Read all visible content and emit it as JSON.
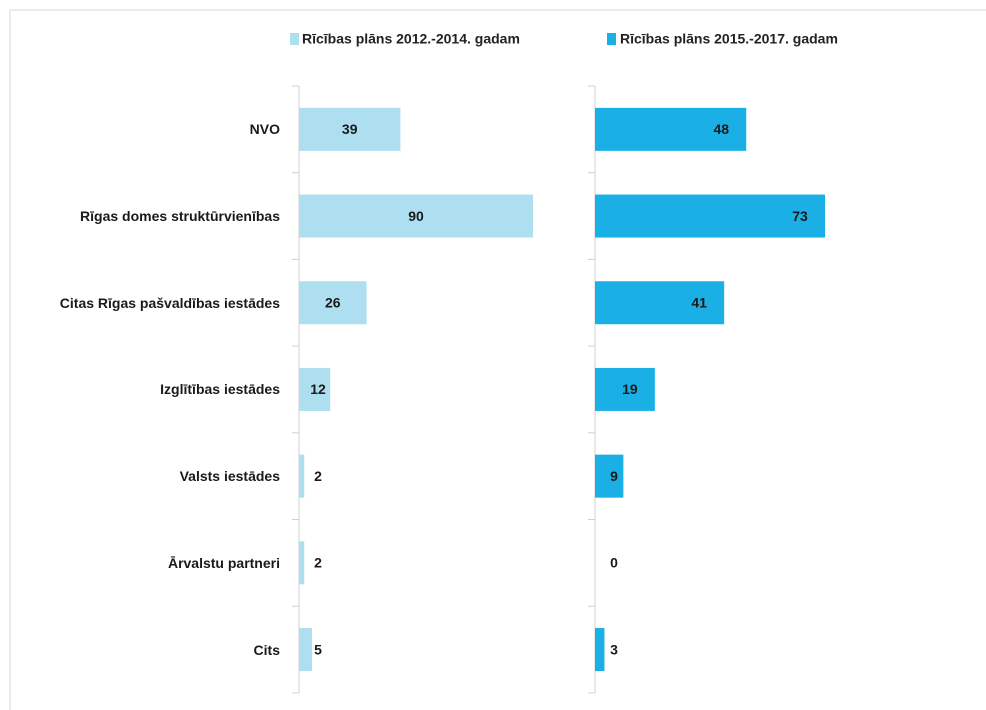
{
  "chart_data": {
    "type": "bar",
    "orientation": "horizontal",
    "categories": [
      "NVO",
      "Rīgas domes struktūrvienības",
      "Citas Rīgas pašvaldības iestādes",
      "Izglītības iestādes",
      "Valsts iestādes",
      "Ārvalstu partneri",
      "Cits"
    ],
    "series": [
      {
        "name": "Rīcības plāns 2012.-2014. gadam",
        "color": "#addff0",
        "values": [
          39,
          90,
          26,
          12,
          2,
          2,
          5
        ]
      },
      {
        "name": "Rīcības plāns 2015.-2017. gadam",
        "color": "#1ab0e6",
        "values": [
          48,
          73,
          41,
          19,
          9,
          0,
          3
        ]
      }
    ]
  }
}
